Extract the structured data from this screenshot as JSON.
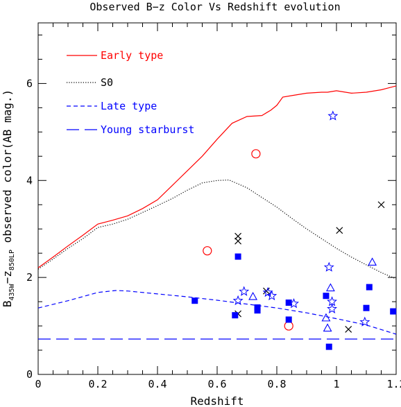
{
  "chart_data": {
    "type": "scatter",
    "title": "Observed B−z Color Vs Redshift evolution",
    "xlabel": "Redshift",
    "ylabel": {
      "main": "B",
      "sub1": "435W",
      "minus": "−z",
      "sub2": "850LP",
      "rest": " observed color(AB mag.)"
    },
    "xlim": [
      0,
      1.2
    ],
    "ylim": [
      0,
      7.25
    ],
    "x_ticks": [
      0,
      0.2,
      0.4,
      0.6,
      0.8,
      1,
      1.2
    ],
    "x_tick_labels": [
      "0",
      "0.2",
      "0.4",
      "0.6",
      "0.8",
      "1",
      "1.2"
    ],
    "y_ticks": [
      0,
      2,
      4,
      6
    ],
    "y_tick_labels": [
      "0",
      "2",
      "4",
      "6"
    ],
    "grid": false,
    "legend_position": "top-left",
    "legend": [
      {
        "label": "Early type",
        "color": "#ff0000",
        "style": "solid"
      },
      {
        "label": "S0",
        "color": "#000000",
        "style": "dotted"
      },
      {
        "label": "Late type",
        "color": "#0000ff",
        "style": "short-dash"
      },
      {
        "label": "Young starburst",
        "color": "#0000ff",
        "style": "long-dash"
      }
    ],
    "curves": [
      {
        "name": "Early type",
        "color": "#ff0000",
        "style": "solid",
        "points": [
          [
            0,
            2.2
          ],
          [
            0.05,
            2.42
          ],
          [
            0.1,
            2.65
          ],
          [
            0.15,
            2.87
          ],
          [
            0.2,
            3.1
          ],
          [
            0.25,
            3.18
          ],
          [
            0.3,
            3.27
          ],
          [
            0.35,
            3.42
          ],
          [
            0.4,
            3.6
          ],
          [
            0.45,
            3.9
          ],
          [
            0.5,
            4.2
          ],
          [
            0.55,
            4.5
          ],
          [
            0.6,
            4.85
          ],
          [
            0.65,
            5.18
          ],
          [
            0.7,
            5.32
          ],
          [
            0.75,
            5.34
          ],
          [
            0.78,
            5.45
          ],
          [
            0.8,
            5.55
          ],
          [
            0.82,
            5.72
          ],
          [
            0.85,
            5.75
          ],
          [
            0.9,
            5.8
          ],
          [
            0.95,
            5.82
          ],
          [
            0.97,
            5.82
          ],
          [
            1.0,
            5.85
          ],
          [
            1.05,
            5.8
          ],
          [
            1.1,
            5.82
          ],
          [
            1.15,
            5.87
          ],
          [
            1.2,
            5.95
          ]
        ]
      },
      {
        "name": "S0",
        "color": "#000000",
        "style": "dotted",
        "points": [
          [
            0,
            2.17
          ],
          [
            0.05,
            2.38
          ],
          [
            0.1,
            2.6
          ],
          [
            0.15,
            2.8
          ],
          [
            0.2,
            3.03
          ],
          [
            0.25,
            3.1
          ],
          [
            0.3,
            3.2
          ],
          [
            0.35,
            3.34
          ],
          [
            0.4,
            3.48
          ],
          [
            0.45,
            3.63
          ],
          [
            0.5,
            3.8
          ],
          [
            0.55,
            3.95
          ],
          [
            0.6,
            4.0
          ],
          [
            0.64,
            4.01
          ],
          [
            0.7,
            3.85
          ],
          [
            0.75,
            3.65
          ],
          [
            0.8,
            3.45
          ],
          [
            0.85,
            3.22
          ],
          [
            0.9,
            3.0
          ],
          [
            0.95,
            2.8
          ],
          [
            1.0,
            2.6
          ],
          [
            1.05,
            2.42
          ],
          [
            1.1,
            2.26
          ],
          [
            1.15,
            2.1
          ],
          [
            1.2,
            1.97
          ]
        ]
      },
      {
        "name": "Late type",
        "color": "#0000ff",
        "style": "short-dash",
        "points": [
          [
            0,
            1.37
          ],
          [
            0.1,
            1.52
          ],
          [
            0.2,
            1.69
          ],
          [
            0.26,
            1.73
          ],
          [
            0.3,
            1.72
          ],
          [
            0.4,
            1.66
          ],
          [
            0.5,
            1.6
          ],
          [
            0.6,
            1.53
          ],
          [
            0.7,
            1.45
          ],
          [
            0.8,
            1.37
          ],
          [
            0.9,
            1.27
          ],
          [
            1.0,
            1.15
          ],
          [
            1.1,
            1.02
          ],
          [
            1.2,
            0.83
          ]
        ]
      },
      {
        "name": "Young starburst",
        "color": "#0000ff",
        "style": "long-dash",
        "points": [
          [
            0,
            0.73
          ],
          [
            1.2,
            0.73
          ]
        ]
      }
    ],
    "markers": [
      {
        "kind": "circle",
        "color": "#ff0000",
        "points": [
          [
            0.567,
            2.55
          ],
          [
            0.73,
            4.55
          ],
          [
            0.84,
            1.0
          ]
        ]
      },
      {
        "kind": "cross",
        "color": "#000000",
        "points": [
          [
            0.67,
            2.85
          ],
          [
            0.67,
            2.75
          ],
          [
            0.67,
            1.25
          ],
          [
            0.765,
            1.72
          ],
          [
            1.01,
            2.97
          ],
          [
            1.04,
            0.93
          ],
          [
            1.15,
            3.5
          ]
        ]
      },
      {
        "kind": "square",
        "color": "#0000ff",
        "points": [
          [
            0.525,
            1.52
          ],
          [
            0.66,
            1.22
          ],
          [
            0.67,
            2.43
          ],
          [
            0.735,
            1.38
          ],
          [
            0.735,
            1.32
          ],
          [
            0.84,
            1.48
          ],
          [
            0.84,
            1.13
          ],
          [
            0.965,
            1.62
          ],
          [
            0.975,
            0.57
          ],
          [
            1.1,
            1.37
          ],
          [
            1.11,
            1.8
          ],
          [
            1.19,
            1.3
          ]
        ]
      },
      {
        "kind": "star",
        "color": "#0000ff",
        "points": [
          [
            0.67,
            1.52
          ],
          [
            0.69,
            1.71
          ],
          [
            0.77,
            1.69
          ],
          [
            0.783,
            1.62
          ],
          [
            0.857,
            1.46
          ],
          [
            0.975,
            2.21
          ],
          [
            0.988,
            5.33
          ],
          [
            0.985,
            1.5
          ],
          [
            0.985,
            1.35
          ],
          [
            1.095,
            1.08
          ]
        ]
      },
      {
        "kind": "triangle",
        "color": "#0000ff",
        "points": [
          [
            0.72,
            1.6
          ],
          [
            0.965,
            1.16
          ],
          [
            0.97,
            0.95
          ],
          [
            0.98,
            1.78
          ],
          [
            1.12,
            2.31
          ]
        ]
      }
    ]
  }
}
